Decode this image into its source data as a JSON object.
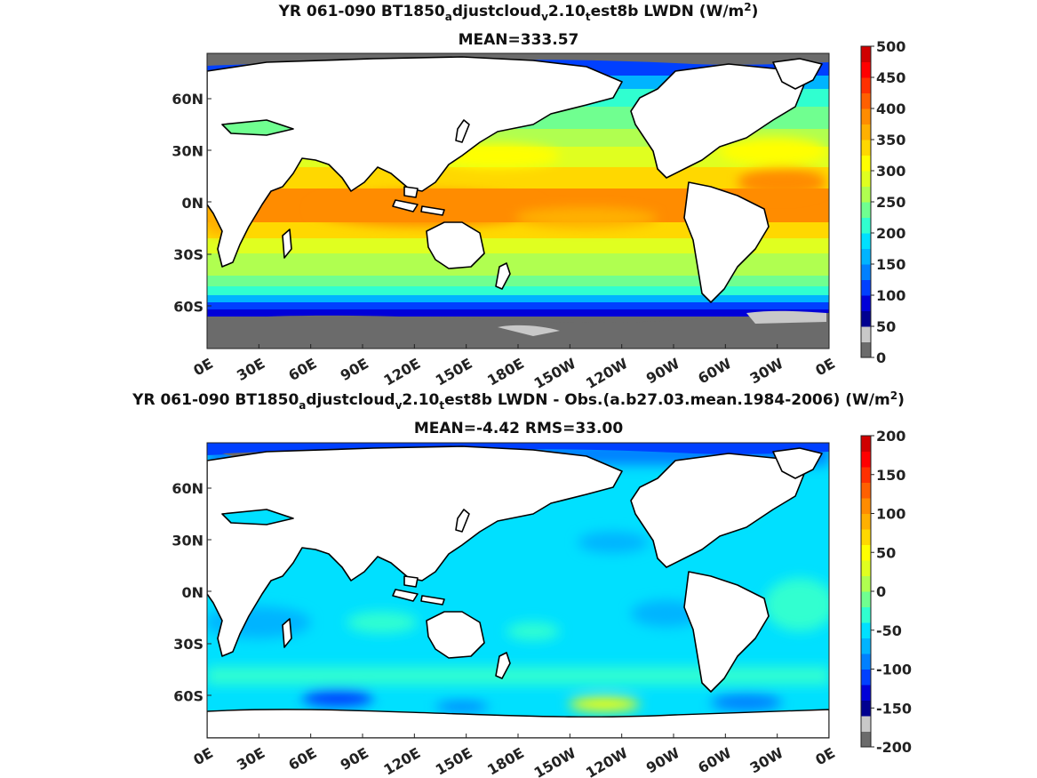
{
  "panels": [
    {
      "title_parts": [
        "YR 061-090 BT1850",
        "a",
        "djustcloud",
        "v",
        "2.10",
        "t",
        "est8b LWDN (W/m",
        "2",
        ")"
      ],
      "subtitle": "MEAN=333.57",
      "colorbar": {
        "ticks": [
          "500",
          "450",
          "400",
          "350",
          "300",
          "250",
          "200",
          "150",
          "100",
          "50",
          "0"
        ],
        "colors": [
          "#6b6b6b",
          "#c8c8c8",
          "#000090",
          "#0000d8",
          "#0040ff",
          "#0080ff",
          "#00b4ff",
          "#00e0ff",
          "#30ffd0",
          "#70ff90",
          "#b0ff50",
          "#e0ff20",
          "#ffff00",
          "#ffd800",
          "#ffb000",
          "#ff8c00",
          "#ff6000",
          "#ff3000",
          "#ff0000",
          "#d00000"
        ]
      }
    },
    {
      "title_parts": [
        "YR 061-090 BT1850",
        "a",
        "djustcloud",
        "v",
        "2.10",
        "t",
        "est8b LWDN - Obs.(a.b27.03.mean.1984-2006) (W/m",
        "2",
        ")"
      ],
      "subtitle": "MEAN=-4.42 RMS=33.00",
      "colorbar": {
        "ticks": [
          "200",
          "150",
          "100",
          "50",
          "0",
          "-50",
          "-100",
          "-150",
          "-200"
        ],
        "colors": [
          "#6b6b6b",
          "#c8c8c8",
          "#000090",
          "#0000d8",
          "#0040ff",
          "#0080ff",
          "#00b4ff",
          "#00e0ff",
          "#30ffd0",
          "#70ff90",
          "#b0ff50",
          "#e0ff20",
          "#ffff00",
          "#ffd800",
          "#ffb000",
          "#ff8c00",
          "#ff6000",
          "#ff3000",
          "#ff0000",
          "#d00000"
        ]
      }
    }
  ],
  "axes": {
    "lat_labels": [
      "60N",
      "30N",
      "0N",
      "30S",
      "60S"
    ],
    "lon_labels": [
      "0E",
      "30E",
      "60E",
      "90E",
      "120E",
      "150E",
      "180E",
      "150W",
      "120W",
      "90W",
      "60W",
      "30W",
      "0E"
    ]
  },
  "chart_data": [
    {
      "type": "heatmap",
      "title": "YR 061-090 BT1850adjustcloudv2.10test8b LWDN (W/m2)",
      "subtitle": "MEAN=333.57",
      "x_ticks": [
        "0E",
        "30E",
        "60E",
        "90E",
        "120E",
        "150E",
        "180E",
        "150W",
        "120W",
        "90W",
        "60W",
        "30W",
        "0E"
      ],
      "y_ticks": [
        "60N",
        "30N",
        "0N",
        "30S",
        "60S"
      ],
      "colorbar_range": [
        0,
        500
      ],
      "colorbar_ticks": [
        0,
        50,
        100,
        150,
        200,
        250,
        300,
        350,
        400,
        450,
        500
      ],
      "mean": 333.57
    },
    {
      "type": "heatmap",
      "title": "YR 061-090 BT1850adjustcloudv2.10test8b LWDN - Obs.(a.b27.03.mean.1984-2006) (W/m2)",
      "subtitle": "MEAN=-4.42 RMS=33.00",
      "x_ticks": [
        "0E",
        "30E",
        "60E",
        "90E",
        "120E",
        "150E",
        "180E",
        "150W",
        "120W",
        "90W",
        "60W",
        "30W",
        "0E"
      ],
      "y_ticks": [
        "60N",
        "30N",
        "0N",
        "30S",
        "60S"
      ],
      "colorbar_range": [
        -200,
        200
      ],
      "colorbar_ticks": [
        -200,
        -150,
        -100,
        -50,
        0,
        50,
        100,
        150,
        200
      ],
      "mean": -4.42,
      "rms": 33.0
    }
  ]
}
